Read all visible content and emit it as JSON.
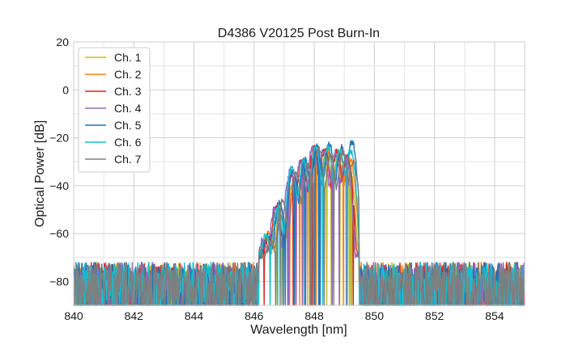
{
  "chart_data": {
    "type": "line",
    "title": "D4386 V20125 Post Burn-In",
    "xlabel": "Wavelength [nm]",
    "ylabel": "Optical Power [dB]",
    "xlim": [
      840,
      855
    ],
    "ylim": [
      -90,
      20
    ],
    "x_ticks": [
      "840",
      "842",
      "844",
      "846",
      "848",
      "850",
      "852",
      "854"
    ],
    "y_ticks": [
      "20",
      "0",
      "−20",
      "−40",
      "−60",
      "−80"
    ],
    "grid": true,
    "legend_position": "top-left",
    "noise_floor_db": -70,
    "series": [
      {
        "name": "Ch. 1",
        "color": "#bcbd22",
        "peaks": [
          [
            846.4,
            -62
          ],
          [
            846.8,
            -52
          ],
          [
            847.3,
            -38
          ],
          [
            847.65,
            -30
          ],
          [
            848.05,
            -26
          ],
          [
            848.4,
            -26
          ],
          [
            848.8,
            -27
          ],
          [
            849.15,
            -30
          ]
        ]
      },
      {
        "name": "Ch. 2",
        "color": "#ff7f0e",
        "peaks": [
          [
            846.5,
            -60
          ],
          [
            846.9,
            -50
          ],
          [
            847.35,
            -37
          ],
          [
            847.7,
            -30
          ],
          [
            848.1,
            -25
          ],
          [
            848.45,
            -25
          ],
          [
            848.85,
            -26
          ],
          [
            849.2,
            -29
          ]
        ]
      },
      {
        "name": "Ch. 3",
        "color": "#d62728",
        "peaks": [
          [
            846.35,
            -64
          ],
          [
            846.75,
            -48
          ],
          [
            847.25,
            -35
          ],
          [
            847.6,
            -29
          ],
          [
            848.0,
            -24
          ],
          [
            848.35,
            -25
          ],
          [
            848.75,
            -26
          ],
          [
            849.1,
            -28
          ]
        ]
      },
      {
        "name": "Ch. 4",
        "color": "#9467bd",
        "peaks": [
          [
            846.3,
            -63
          ],
          [
            846.7,
            -49
          ],
          [
            847.2,
            -33
          ],
          [
            847.55,
            -30
          ],
          [
            847.95,
            -24
          ],
          [
            848.3,
            -25
          ],
          [
            848.7,
            -26
          ],
          [
            849.05,
            -28
          ]
        ]
      },
      {
        "name": "Ch. 5",
        "color": "#1f77b4",
        "peaks": [
          [
            846.45,
            -62
          ],
          [
            846.85,
            -47
          ],
          [
            847.3,
            -34
          ],
          [
            847.7,
            -29
          ],
          [
            848.1,
            -23
          ],
          [
            848.5,
            -23
          ],
          [
            848.9,
            -24
          ],
          [
            849.25,
            -22
          ]
        ]
      },
      {
        "name": "Ch. 6",
        "color": "#17becf",
        "peaks": [
          [
            846.4,
            -61
          ],
          [
            846.8,
            -48
          ],
          [
            847.25,
            -33
          ],
          [
            847.65,
            -30
          ],
          [
            848.05,
            -24
          ],
          [
            848.45,
            -24
          ],
          [
            848.85,
            -25
          ],
          [
            849.2,
            -25
          ]
        ]
      },
      {
        "name": "Ch. 7",
        "color": "#7f7f7f",
        "peaks": [
          [
            846.55,
            -65
          ],
          [
            846.95,
            -46
          ],
          [
            847.4,
            -35
          ],
          [
            847.8,
            -31
          ],
          [
            848.15,
            -25
          ],
          [
            848.55,
            -27
          ],
          [
            848.95,
            -26
          ],
          [
            849.3,
            -30
          ]
        ]
      }
    ]
  }
}
